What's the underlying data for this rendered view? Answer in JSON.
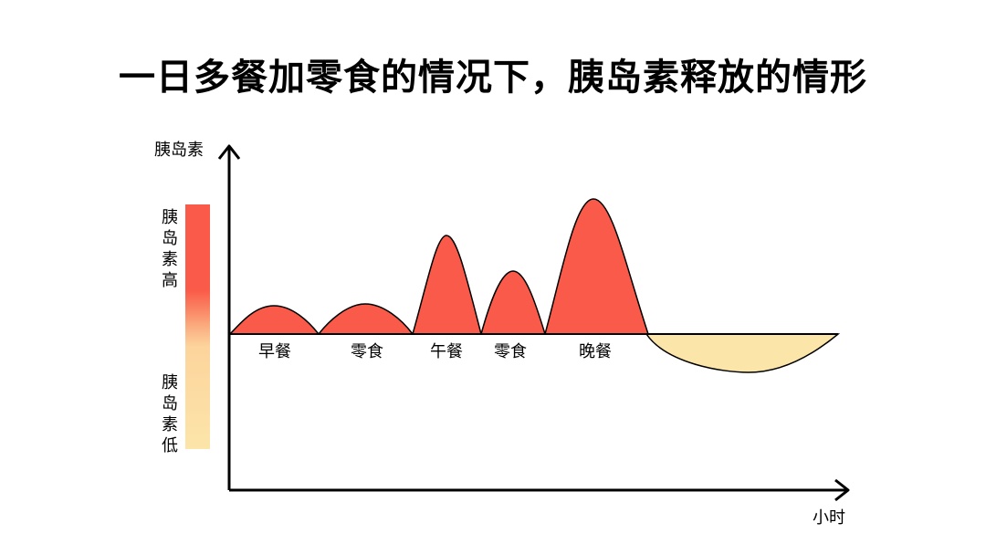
{
  "title": "一日多餐加零食的情况下，胰岛素释放的情形",
  "y_axis_label": "胰岛素",
  "x_axis_label": "小时",
  "scale_high_label": "胰岛素高",
  "scale_low_label": "胰岛素低",
  "meals": [
    {
      "label": "早餐"
    },
    {
      "label": "零食"
    },
    {
      "label": "午餐"
    },
    {
      "label": "零食"
    },
    {
      "label": "晚餐"
    }
  ],
  "colors": {
    "peak": "#fa5a49",
    "dip": "#fce5a9",
    "gradient_top": "#fa5a49",
    "gradient_bottom": "#fce5a9"
  }
}
